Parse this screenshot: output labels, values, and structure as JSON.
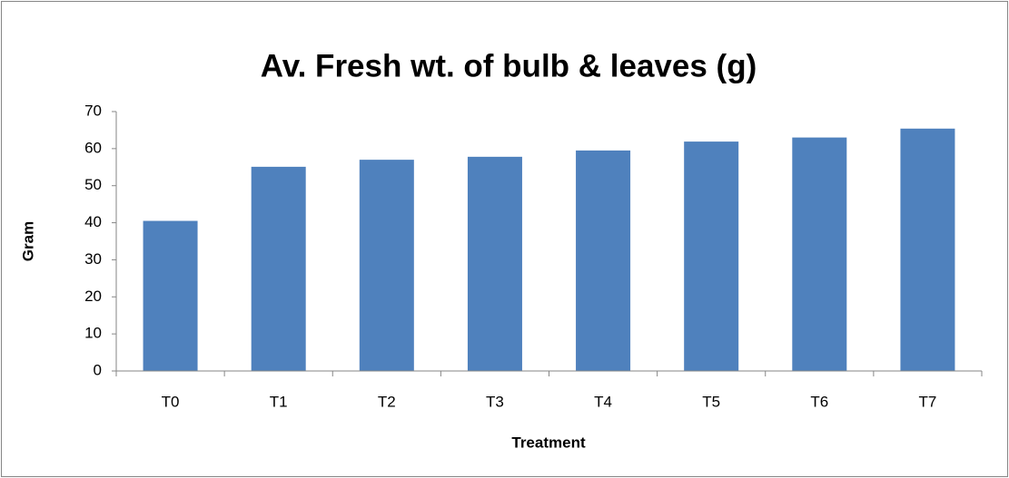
{
  "chart_data": {
    "type": "bar",
    "title": "Av. Fresh wt. of bulb & leaves (g)",
    "x_label": "Treatment",
    "y_label": "Gram",
    "categories": [
      "T0",
      "T1",
      "T2",
      "T3",
      "T4",
      "T5",
      "T6",
      "T7"
    ],
    "values": [
      40.5,
      55.1,
      57.0,
      57.8,
      59.5,
      61.9,
      63.0,
      65.4
    ],
    "color": "#4f81bd",
    "ylim": [
      0,
      70
    ],
    "yticks": [
      0,
      10,
      20,
      30,
      40,
      50,
      60,
      70
    ],
    "grid": false
  }
}
